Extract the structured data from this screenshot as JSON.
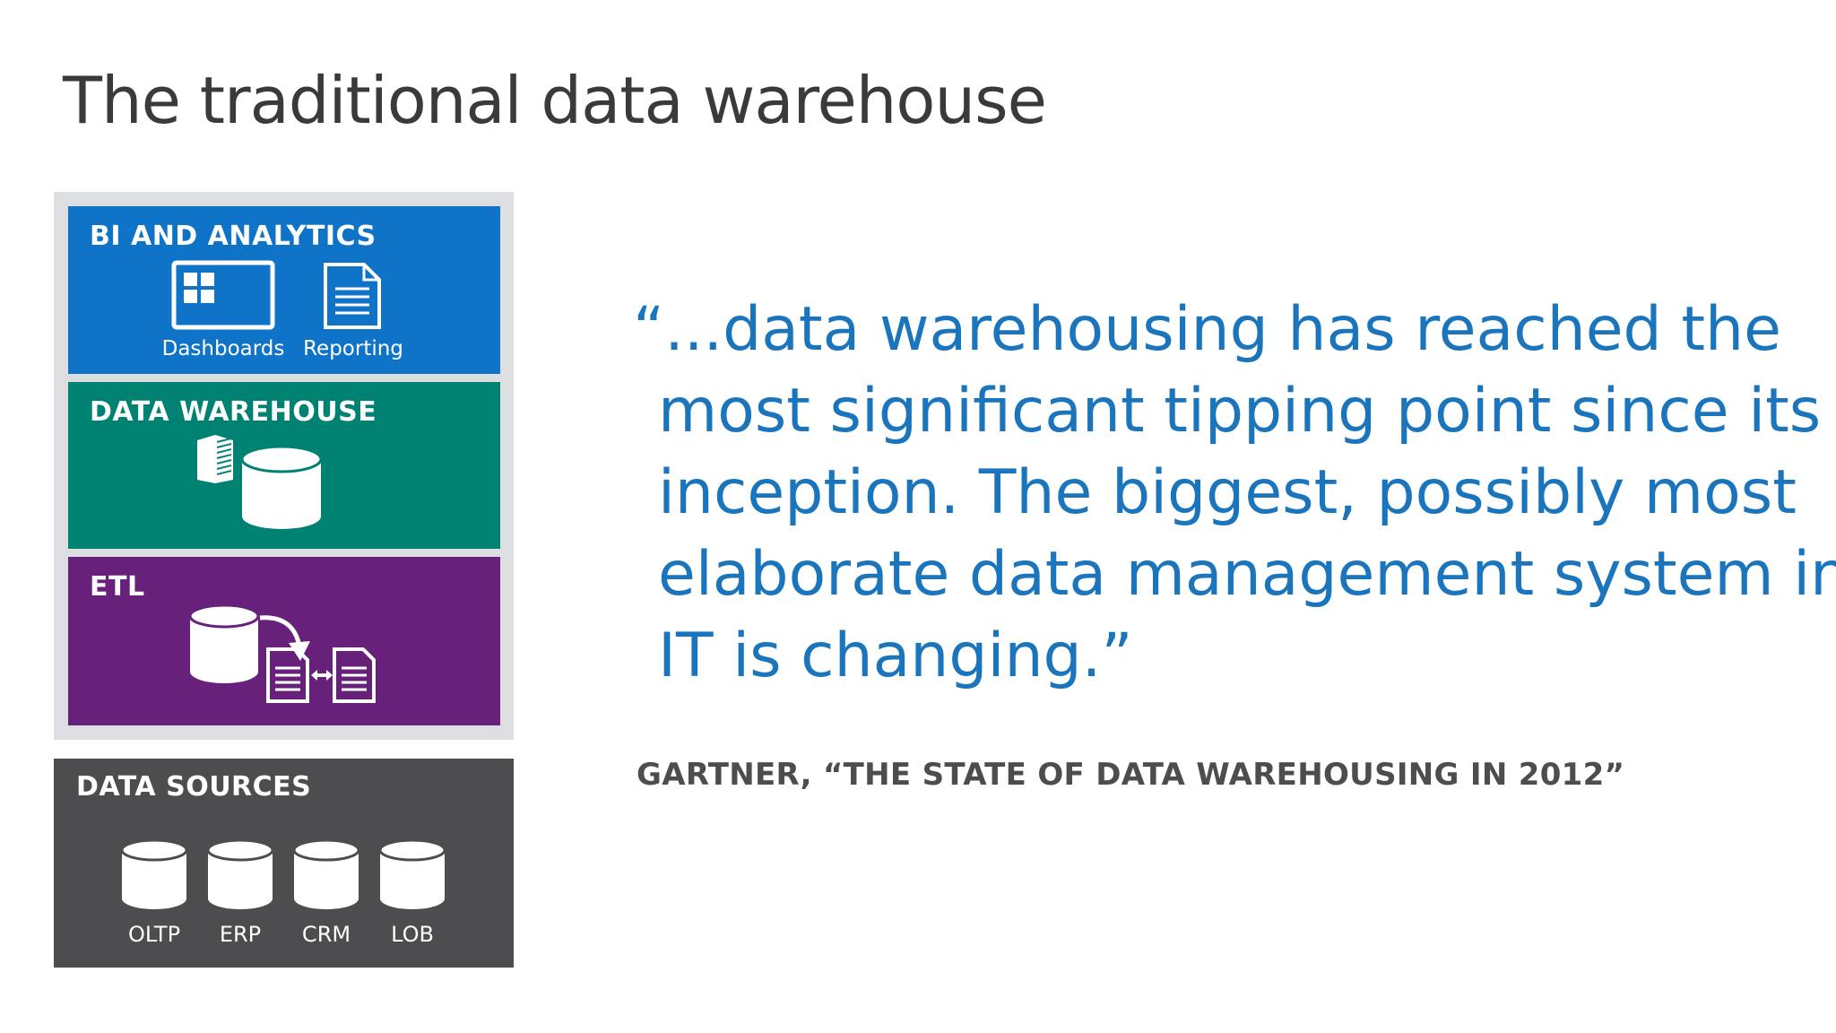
{
  "title": "The traditional data warehouse",
  "diagram": {
    "bi": {
      "label": "BI AND ANALYTICS",
      "items": [
        {
          "label": "Dashboards",
          "icon": "dashboard-icon"
        },
        {
          "label": "Reporting",
          "icon": "report-document-icon"
        }
      ]
    },
    "warehouse": {
      "label": "DATA WAREHOUSE",
      "icons": [
        "server-icon",
        "database-icon"
      ]
    },
    "etl": {
      "label": "ETL",
      "icons": [
        "database-icon",
        "arrow-icon",
        "document-icon",
        "bidirectional-arrow-icon",
        "document-icon"
      ]
    },
    "sources": {
      "label": "DATA SOURCES",
      "items": [
        {
          "label": "OLTP",
          "icon": "database-icon"
        },
        {
          "label": "ERP",
          "icon": "database-icon"
        },
        {
          "label": "CRM",
          "icon": "database-icon"
        },
        {
          "label": "LOB",
          "icon": "database-icon"
        }
      ]
    },
    "colors": {
      "bi": "#0f73c8",
      "warehouse": "#008272",
      "etl": "#68217a",
      "sources": "#4d4d4f",
      "frame": "#dcdee1"
    }
  },
  "quote": {
    "lines": [
      "“...data warehousing has reached the",
      "most significant tipping point since its",
      "inception. The biggest, possibly most",
      "elaborate data management system in",
      "IT is changing.”"
    ],
    "color": "#1b75bc"
  },
  "attribution": "GARTNER, “THE STATE OF DATA WAREHOUSING IN 2012”"
}
